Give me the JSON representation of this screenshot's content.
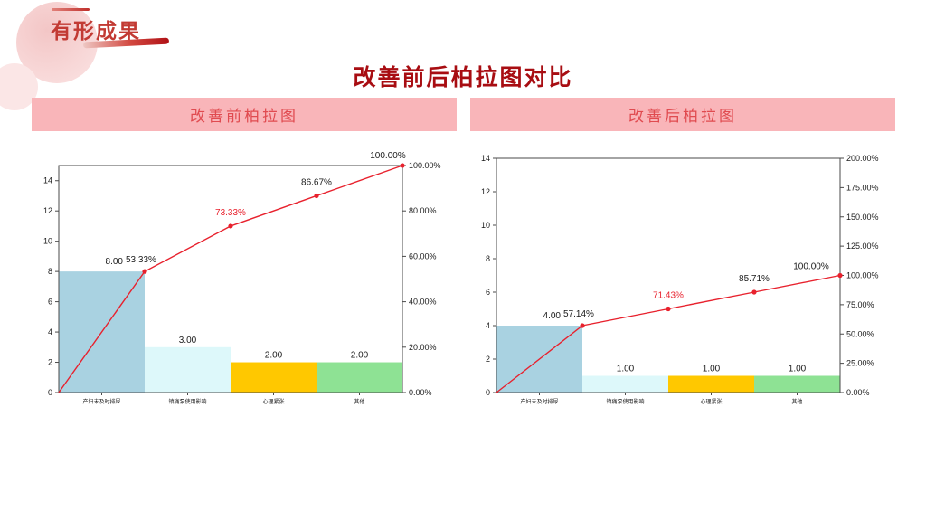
{
  "header": {
    "section_label": "有形成果",
    "title": "改善前后柏拉图对比"
  },
  "panels": [
    {
      "header": "改善前柏拉图"
    },
    {
      "header": "改善后柏拉图"
    }
  ],
  "colors": {
    "accent_dark_red": "#a80d12",
    "panel_pink": "#f9b5b9",
    "panel_text_red": "#e04b50",
    "line_red": "#e8212d",
    "axis_gray": "#4a4a4a",
    "label_black": "#1a1a1a"
  },
  "chart_data": [
    {
      "type": "bar",
      "subtype": "pareto-bar-line",
      "title": "改善前柏拉图",
      "categories": [
        "产妇未及时排尿",
        "镇痛泵使用影响",
        "心理紧张",
        "其他"
      ],
      "values": [
        8,
        3,
        2,
        2
      ],
      "bar_labels": [
        "8.00",
        "3.00",
        "2.00",
        "2.00"
      ],
      "cumulative_counts": [
        8,
        11,
        13,
        15
      ],
      "cumulative_percent": [
        53.33,
        73.33,
        86.67,
        100.0
      ],
      "cumulative_labels": [
        "53.33%",
        "73.33%",
        "86.67%",
        "100.00%"
      ],
      "highlight_label_index": 1,
      "bar_colors": [
        "#a9d2e1",
        "#ddf8fa",
        "#ffc800",
        "#8ee294"
      ],
      "line_color": "#e8212d",
      "left_axis": {
        "min": 0,
        "max": 15,
        "ticks": [
          0,
          2,
          4,
          6,
          8,
          10,
          12,
          14
        ]
      },
      "right_axis": {
        "min": 0,
        "max": 100,
        "tick_labels": [
          "0.00%",
          "20.00%",
          "40.00%",
          "60.00%",
          "80.00%",
          "100.00%"
        ]
      },
      "grid": false,
      "legend": "none"
    },
    {
      "type": "bar",
      "subtype": "pareto-bar-line",
      "title": "改善后柏拉图",
      "categories": [
        "产妇未及时排尿",
        "镇痛泵使用影响",
        "心理紧张",
        "其他"
      ],
      "values": [
        4,
        1,
        1,
        1
      ],
      "bar_labels": [
        "4.00",
        "1.00",
        "1.00",
        "1.00"
      ],
      "cumulative_counts": [
        4,
        5,
        6,
        7
      ],
      "cumulative_percent": [
        57.14,
        71.43,
        85.71,
        100.0
      ],
      "cumulative_labels": [
        "57.14%",
        "71.43%",
        "85.71%",
        "100.00%"
      ],
      "highlight_label_index": 1,
      "bar_colors": [
        "#a9d2e1",
        "#ddf8fa",
        "#ffc800",
        "#8ee294"
      ],
      "line_color": "#e8212d",
      "left_axis": {
        "min": 0,
        "max": 14,
        "ticks": [
          0,
          2,
          4,
          6,
          8,
          10,
          12,
          14
        ]
      },
      "right_axis": {
        "min": 0,
        "max": 200,
        "tick_labels": [
          "0.00%",
          "25.00%",
          "50.00%",
          "75.00%",
          "100.00%",
          "125.00%",
          "150.00%",
          "175.00%",
          "200.00%"
        ]
      },
      "grid": false,
      "legend": "none"
    }
  ]
}
